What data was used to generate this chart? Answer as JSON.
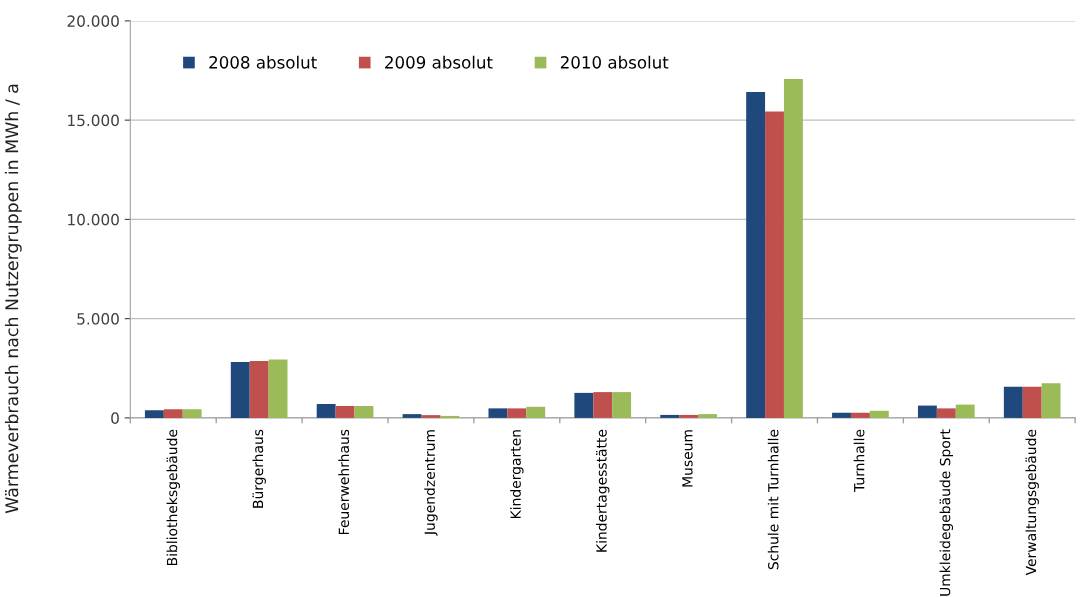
{
  "chart_data": {
    "type": "bar",
    "ylabel": "Wärmeverbrauch nach Nutzergruppen in MWh / a",
    "categories": [
      "Bibliotheksgebäude",
      "Bürgerhaus",
      "Feuerwehrhaus",
      "Jugendzentrum",
      "Kindergarten",
      "Kindertagesstätte",
      "Museum",
      "Schule mit Turnhalle",
      "Turnhalle",
      "Umkleidegebäude Sport",
      "Verwaltungsgebäude"
    ],
    "series": [
      {
        "name": "2008 absolut",
        "color": "#1f497d",
        "values": [
          390,
          2820,
          700,
          190,
          480,
          1260,
          150,
          16420,
          260,
          620,
          1570
        ]
      },
      {
        "name": "2009 absolut",
        "color": "#c0504d",
        "values": [
          440,
          2870,
          600,
          140,
          480,
          1300,
          150,
          15440,
          260,
          480,
          1570
        ]
      },
      {
        "name": "2010 absolut",
        "color": "#9bbb59",
        "values": [
          440,
          2940,
          600,
          100,
          560,
          1300,
          190,
          17070,
          360,
          670,
          1740
        ]
      }
    ],
    "ylim": [
      0,
      20000
    ],
    "yticks": [
      {
        "value": 0,
        "label": "0"
      },
      {
        "value": 5000,
        "label": "5.000"
      },
      {
        "value": 10000,
        "label": "10.000"
      },
      {
        "value": 15000,
        "label": "15.000"
      },
      {
        "value": 20000,
        "label": "20.000"
      }
    ],
    "grid": "y",
    "legend": "top left"
  }
}
